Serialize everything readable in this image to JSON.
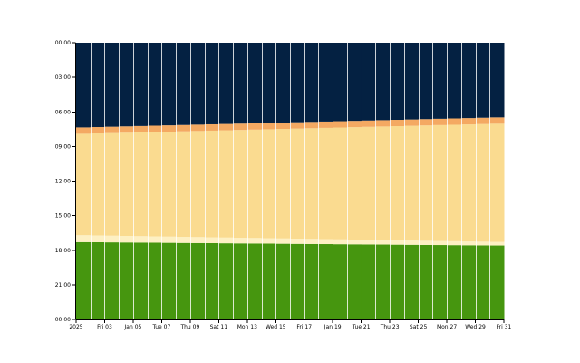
{
  "chart_data": {
    "type": "bar",
    "stacked": true,
    "year_label": "2025",
    "x": [
      "2025-01-01",
      "2025-01-02",
      "2025-01-03",
      "2025-01-04",
      "2025-01-05",
      "2025-01-06",
      "2025-01-07",
      "2025-01-08",
      "2025-01-09",
      "2025-01-10",
      "2025-01-11",
      "2025-01-12",
      "2025-01-13",
      "2025-01-14",
      "2025-01-15",
      "2025-01-16",
      "2025-01-17",
      "2025-01-18",
      "2025-01-19",
      "2025-01-20",
      "2025-01-21",
      "2025-01-22",
      "2025-01-23",
      "2025-01-24",
      "2025-01-25",
      "2025-01-26",
      "2025-01-27",
      "2025-01-28",
      "2025-01-29",
      "2025-01-30"
    ],
    "x_tick_labels": [
      "2025",
      "Fri 03",
      "Jan 05",
      "Tue 07",
      "Thu 09",
      "Sat 11",
      "Mon 13",
      "Wed 15",
      "Fri 17",
      "Jan 19",
      "Tue 21",
      "Thu 23",
      "Sat 25",
      "Mon 27",
      "Wed 29",
      "Fri 31"
    ],
    "y_tick_labels": [
      "00:00",
      "03:00",
      "06:00",
      "09:00",
      "12:00",
      "15:00",
      "18:00",
      "21:00",
      "00:00"
    ],
    "ylim": [
      0,
      24
    ],
    "y_inverted": true,
    "colors": {
      "night": "#042142",
      "twilight_morning": "#fdf0c3",
      "day": "#fadb90",
      "twilight_evening": "#f4a962",
      "lower": "#46960f",
      "divider": "#ffffff"
    },
    "series": [
      {
        "key": "lower",
        "values": [
          6.7,
          6.69,
          6.68,
          6.67,
          6.66,
          6.65,
          6.64,
          6.63,
          6.62,
          6.61,
          6.6,
          6.59,
          6.58,
          6.57,
          6.56,
          6.55,
          6.54,
          6.53,
          6.52,
          6.51,
          6.5,
          6.49,
          6.48,
          6.47,
          6.46,
          6.45,
          6.44,
          6.43,
          6.42,
          6.41
        ]
      },
      {
        "key": "twilight_morning",
        "values": [
          0.6,
          0.59,
          0.58,
          0.57,
          0.56,
          0.55,
          0.54,
          0.53,
          0.52,
          0.51,
          0.5,
          0.49,
          0.48,
          0.47,
          0.46,
          0.45,
          0.44,
          0.43,
          0.42,
          0.41,
          0.4,
          0.39,
          0.38,
          0.37,
          0.36,
          0.35,
          0.34,
          0.33,
          0.32,
          0.31
        ]
      },
      {
        "key": "day",
        "values": [
          8.8,
          8.85,
          8.9,
          8.95,
          9.0,
          9.05,
          9.1,
          9.15,
          9.2,
          9.25,
          9.3,
          9.35,
          9.4,
          9.45,
          9.5,
          9.55,
          9.6,
          9.65,
          9.7,
          9.75,
          9.8,
          9.85,
          9.9,
          9.95,
          10.0,
          10.05,
          10.1,
          10.15,
          10.2,
          10.25
        ]
      },
      {
        "key": "twilight_evening",
        "values": [
          0.55,
          0.55,
          0.55,
          0.55,
          0.55,
          0.55,
          0.55,
          0.55,
          0.55,
          0.55,
          0.55,
          0.55,
          0.55,
          0.55,
          0.55,
          0.55,
          0.55,
          0.55,
          0.55,
          0.55,
          0.55,
          0.55,
          0.55,
          0.55,
          0.55,
          0.55,
          0.55,
          0.55,
          0.55,
          0.55
        ]
      },
      {
        "key": "night",
        "values": [
          7.35,
          7.32,
          7.29,
          7.26,
          7.23,
          7.2,
          7.17,
          7.14,
          7.11,
          7.08,
          7.05,
          7.02,
          6.99,
          6.96,
          6.93,
          6.9,
          6.87,
          6.84,
          6.81,
          6.78,
          6.75,
          6.72,
          6.69,
          6.66,
          6.63,
          6.6,
          6.57,
          6.54,
          6.51,
          6.48
        ]
      }
    ]
  }
}
